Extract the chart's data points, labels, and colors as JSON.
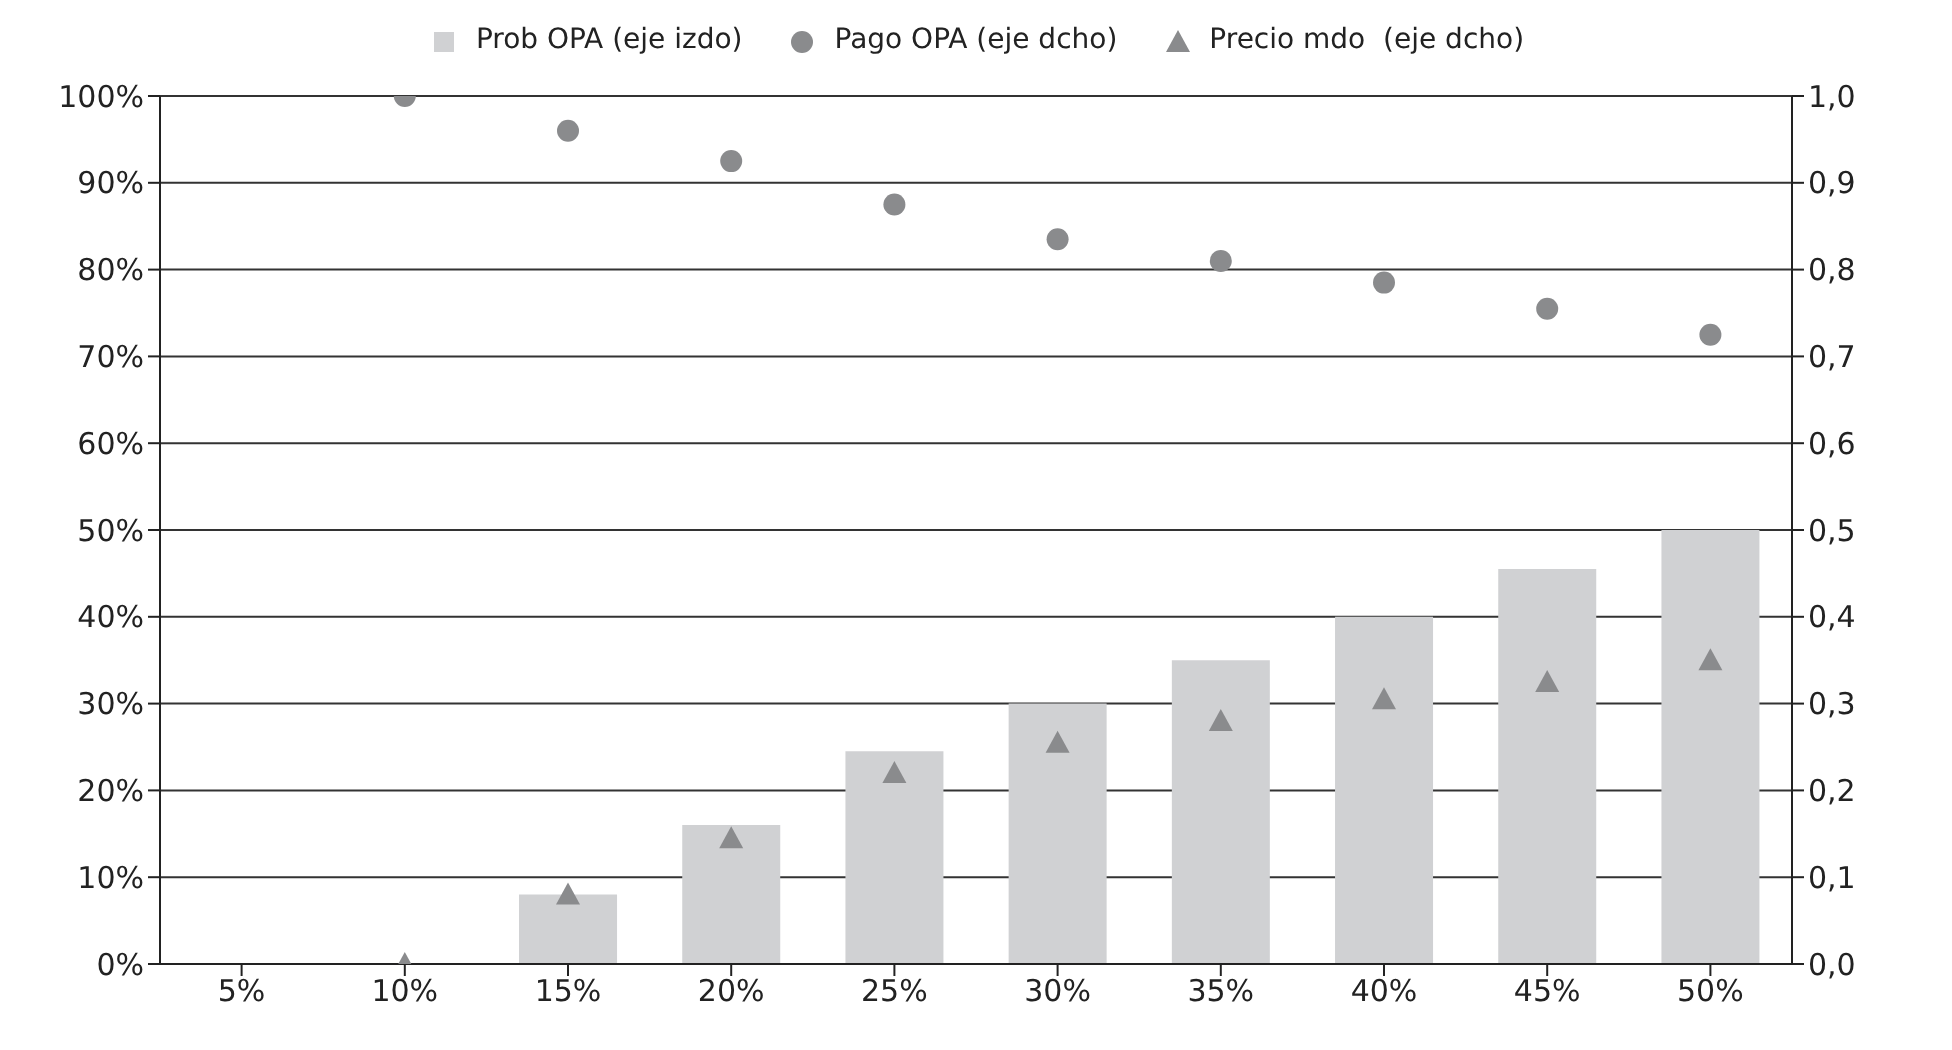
{
  "chart_data": {
    "type": "bar",
    "categories": [
      "5%",
      "10%",
      "15%",
      "20%",
      "25%",
      "30%",
      "35%",
      "40%",
      "45%",
      "50%"
    ],
    "series": [
      {
        "name": "Prob OPA (eje izdo)",
        "color": "#d0d1d3",
        "values": [
          0,
          0,
          8,
          16,
          24.5,
          30,
          35,
          40,
          45.5,
          50
        ]
      },
      {
        "name": "Pago OPA (eje dcho)",
        "type": "scatter",
        "marker": "circle",
        "axis": "y2",
        "color": "#8a8b8d",
        "values": [
          null,
          1.0,
          0.96,
          0.925,
          0.875,
          0.835,
          0.81,
          0.785,
          0.755,
          0.725
        ]
      },
      {
        "name": "Precio mdo  (eje dcho)",
        "type": "scatter",
        "marker": "triangle",
        "axis": "y2",
        "color": "#8a8b8d",
        "values": [
          null,
          0.0,
          0.08,
          0.145,
          0.22,
          0.255,
          0.28,
          0.305,
          0.325,
          0.35
        ]
      }
    ],
    "ylim": [
      0,
      100
    ],
    "yticks": [
      {
        "value": 0,
        "label": "0%"
      },
      {
        "value": 10,
        "label": "10%"
      },
      {
        "value": 20,
        "label": "20%"
      },
      {
        "value": 30,
        "label": "30%"
      },
      {
        "value": 40,
        "label": "40%"
      },
      {
        "value": 50,
        "label": "50%"
      },
      {
        "value": 60,
        "label": "60%"
      },
      {
        "value": 70,
        "label": "70%"
      },
      {
        "value": 80,
        "label": "80%"
      },
      {
        "value": 90,
        "label": "90%"
      },
      {
        "value": 100,
        "label": "100%"
      }
    ],
    "y2lim": [
      0,
      1
    ],
    "y2ticks": [
      {
        "value": 0,
        "label": "0,0"
      },
      {
        "value": 0.1,
        "label": "0,1"
      },
      {
        "value": 0.2,
        "label": "0,2"
      },
      {
        "value": 0.3,
        "label": "0,3"
      },
      {
        "value": 0.4,
        "label": "0,4"
      },
      {
        "value": 0.5,
        "label": "0,5"
      },
      {
        "value": 0.6,
        "label": "0,6"
      },
      {
        "value": 0.7,
        "label": "0,7"
      },
      {
        "value": 0.8,
        "label": "0,8"
      },
      {
        "value": 0.9,
        "label": "0,9"
      },
      {
        "value": 1.0,
        "label": "1,0"
      }
    ],
    "grid": "y",
    "legend": "top"
  }
}
